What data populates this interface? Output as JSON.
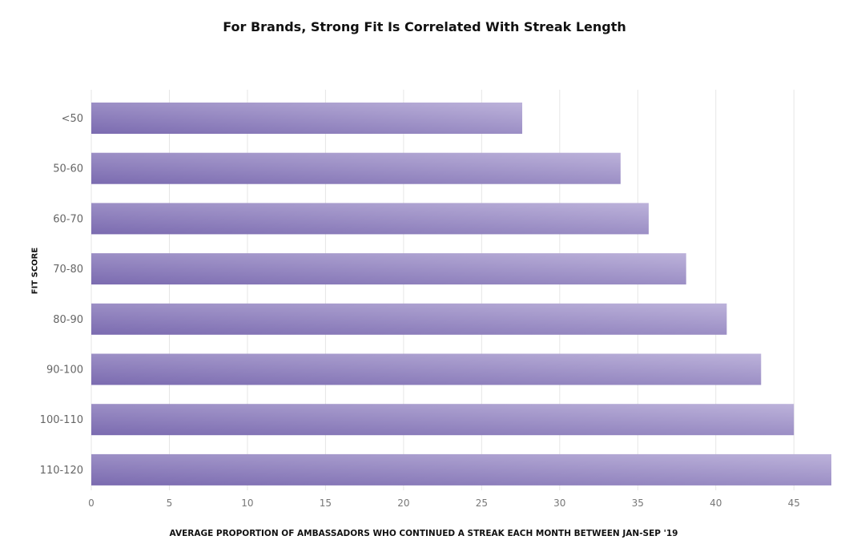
{
  "chart_data": {
    "type": "bar",
    "orientation": "horizontal",
    "title": "For Brands, Strong Fit Is Correlated With Streak Length",
    "xlabel": "AVERAGE PROPORTION OF AMBASSADORS WHO CONTINUED A STREAK EACH MONTH BETWEEN JAN-SEP '19",
    "ylabel": "FIT SCORE",
    "categories": [
      "<50",
      "50-60",
      "60-70",
      "70-80",
      "80-90",
      "90-100",
      "100-110",
      "110-120"
    ],
    "values": [
      27.6,
      33.9,
      35.7,
      38.1,
      40.7,
      42.9,
      45.0,
      47.4
    ],
    "xlim": [
      0,
      47.4
    ],
    "xticks": [
      0,
      5,
      10,
      15,
      20,
      25,
      30,
      35,
      40,
      45
    ],
    "grid": "vertical",
    "legend": "none",
    "colors": {
      "bar_start": "#7b6bb0",
      "bar_end": "#bcb2da",
      "grid": "#e6e6e6"
    }
  }
}
